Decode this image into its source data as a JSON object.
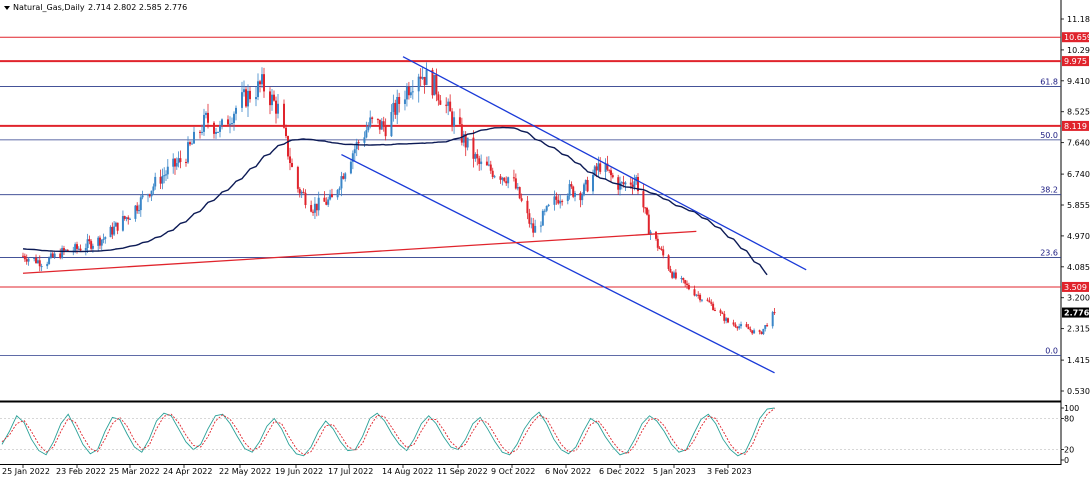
{
  "header": {
    "symbol": "Natural_Gas,Daily",
    "ohlc": "2.714 2.802 2.585 2.776"
  },
  "colors": {
    "bull": "#3a86c8",
    "bear": "#e0242c",
    "ma": "#0c1a55",
    "channel": "#1a3ad8",
    "support_trend": "#e0242c",
    "horizontal_level": "#e0242c",
    "fib": "#2a3a8a",
    "osc_main": "#2aa198",
    "osc_signal": "#e0242c",
    "current_tag": "#000000"
  },
  "chart_data": [
    {
      "type": "candlestick",
      "title": "Natural_Gas,Daily",
      "ylim": [
        0.3,
        12.0
      ],
      "y_ticks": [
        "11.180",
        "10.295",
        "9.410",
        "8.525",
        "7.640",
        "6.740",
        "5.855",
        "4.970",
        "4.085",
        "3.200",
        "2.315",
        "1.415",
        "0.530"
      ],
      "x_ticks": [
        "25 Jan 2022",
        "23 Feb 2022",
        "25 Mar 2022",
        "24 Apr 2022",
        "22 May 2022",
        "19 Jun 2022",
        "17 Jul 2022",
        "14 Aug 2022",
        "11 Sep 2022",
        "9 Oct 2022",
        "6 Nov 2022",
        "6 Dec 2022",
        "5 Jan 2023",
        "3 Feb 2023"
      ],
      "closes_anchor": [
        [
          "25 Jan 2022",
          4.4
        ],
        [
          "5 Feb 2022",
          4.2
        ],
        [
          "15 Feb 2022",
          4.5
        ],
        [
          "23 Feb 2022",
          4.6
        ],
        [
          "10 Mar 2022",
          4.9
        ],
        [
          "25 Mar 2022",
          5.6
        ],
        [
          "10 Apr 2022",
          6.6
        ],
        [
          "24 Apr 2022",
          7.2
        ],
        [
          "5 May 2022",
          8.3
        ],
        [
          "12 May 2022",
          8.0
        ],
        [
          "22 May 2022",
          8.8
        ],
        [
          "2 Jun 2022",
          9.3
        ],
        [
          "10 Jun 2022",
          8.6
        ],
        [
          "19 Jun 2022",
          6.4
        ],
        [
          "28 Jun 2022",
          5.8
        ],
        [
          "8 Jul 2022",
          6.0
        ],
        [
          "17 Jul 2022",
          7.2
        ],
        [
          "28 Jul 2022",
          8.2
        ],
        [
          "5 Aug 2022",
          8.1
        ],
        [
          "14 Aug 2022",
          9.0
        ],
        [
          "22 Aug 2022",
          9.7
        ],
        [
          "31 Aug 2022",
          9.2
        ],
        [
          "11 Sep 2022",
          8.0
        ],
        [
          "22 Sep 2022",
          7.0
        ],
        [
          "30 Sep 2022",
          6.8
        ],
        [
          "9 Oct 2022",
          6.6
        ],
        [
          "20 Oct 2022",
          5.1
        ],
        [
          "30 Oct 2022",
          5.9
        ],
        [
          "6 Nov 2022",
          6.3
        ],
        [
          "15 Nov 2022",
          6.2
        ],
        [
          "25 Nov 2022",
          7.0
        ],
        [
          "6 Dec 2022",
          6.4
        ],
        [
          "15 Dec 2022",
          6.6
        ],
        [
          "22 Dec 2022",
          5.2
        ],
        [
          "5 Jan 2023",
          3.8
        ],
        [
          "15 Jan 2023",
          3.4
        ],
        [
          "25 Jan 2023",
          3.0
        ],
        [
          "3 Feb 2023",
          2.5
        ],
        [
          "14 Feb 2023",
          2.3
        ],
        [
          "20 Feb 2023",
          2.15
        ],
        [
          "28 Feb 2023",
          2.776
        ]
      ],
      "last_price": "2.776",
      "moving_average": {
        "start": 4.6,
        "end": 4.35
      },
      "horizontal_levels": [
        {
          "value": 10.659,
          "label": "10.659"
        },
        {
          "value": 9.975,
          "label": "9.975"
        },
        {
          "value": 8.119,
          "label": "8.119"
        },
        {
          "value": 3.509,
          "label": "3.509"
        }
      ],
      "fibonacci": [
        {
          "level": "61.8",
          "price": 9.25
        },
        {
          "level": "50.0",
          "price": 7.72
        },
        {
          "level": "38.2",
          "price": 6.15
        },
        {
          "level": "23.6",
          "price": 4.35
        },
        {
          "level": "0.0",
          "price": 1.55
        }
      ],
      "trendlines": {
        "channel_upper": [
          [
            "14 Aug 2022",
            10.1
          ],
          [
            "17 Mar 2023",
            4.0
          ]
        ],
        "channel_lower": [
          [
            "13 Jul 2022",
            7.3
          ],
          [
            "28 Feb 2023",
            1.05
          ]
        ],
        "support": [
          [
            "25 Jan 2022",
            3.9
          ],
          [
            "17 Jan 2023",
            5.1
          ]
        ]
      }
    },
    {
      "type": "line",
      "title": "",
      "ylim": [
        0,
        100
      ],
      "y_ticks": [
        "100",
        "80",
        "20",
        "0"
      ],
      "series": [
        {
          "values": [
            30,
            55,
            85,
            72,
            40,
            18,
            10,
            35,
            70,
            88,
            60,
            30,
            12,
            20,
            55,
            82,
            78,
            50,
            25,
            15,
            40,
            75,
            90,
            85,
            60,
            35,
            20,
            30,
            60,
            85,
            88,
            70,
            45,
            22,
            15,
            35,
            65,
            80,
            60,
            30,
            12,
            8,
            25,
            55,
            75,
            60,
            35,
            18,
            20,
            45,
            80,
            90,
            75,
            50,
            30,
            18,
            40,
            70,
            85,
            70,
            45,
            25,
            20,
            40,
            70,
            82,
            60,
            35,
            15,
            10,
            30,
            60,
            80,
            92,
            70,
            40,
            20,
            12,
            25,
            55,
            80,
            70,
            45,
            25,
            10,
            15,
            40,
            70,
            85,
            75,
            55,
            30,
            15,
            20,
            50,
            78,
            88,
            70,
            40,
            20,
            8,
            15,
            45,
            80,
            98,
            100
          ]
        },
        {
          "values": [
            35,
            48,
            70,
            76,
            55,
            30,
            15,
            25,
            55,
            80,
            72,
            45,
            22,
            16,
            40,
            70,
            82,
            65,
            38,
            20,
            28,
            60,
            84,
            88,
            72,
            48,
            28,
            25,
            45,
            75,
            87,
            78,
            58,
            33,
            18,
            25,
            50,
            74,
            70,
            45,
            22,
            10,
            16,
            40,
            66,
            68,
            48,
            26,
            18,
            32,
            64,
            86,
            83,
            62,
            40,
            24,
            30,
            56,
            78,
            78,
            58,
            35,
            22,
            30,
            56,
            77,
            72,
            48,
            25,
            12,
            20,
            46,
            70,
            86,
            80,
            55,
            30,
            16,
            18,
            40,
            68,
            76,
            58,
            35,
            18,
            12,
            28,
            56,
            78,
            80,
            66,
            42,
            22,
            18,
            36,
            64,
            84,
            80,
            56,
            30,
            14,
            11,
            30,
            63,
            88,
            99
          ]
        }
      ]
    }
  ]
}
